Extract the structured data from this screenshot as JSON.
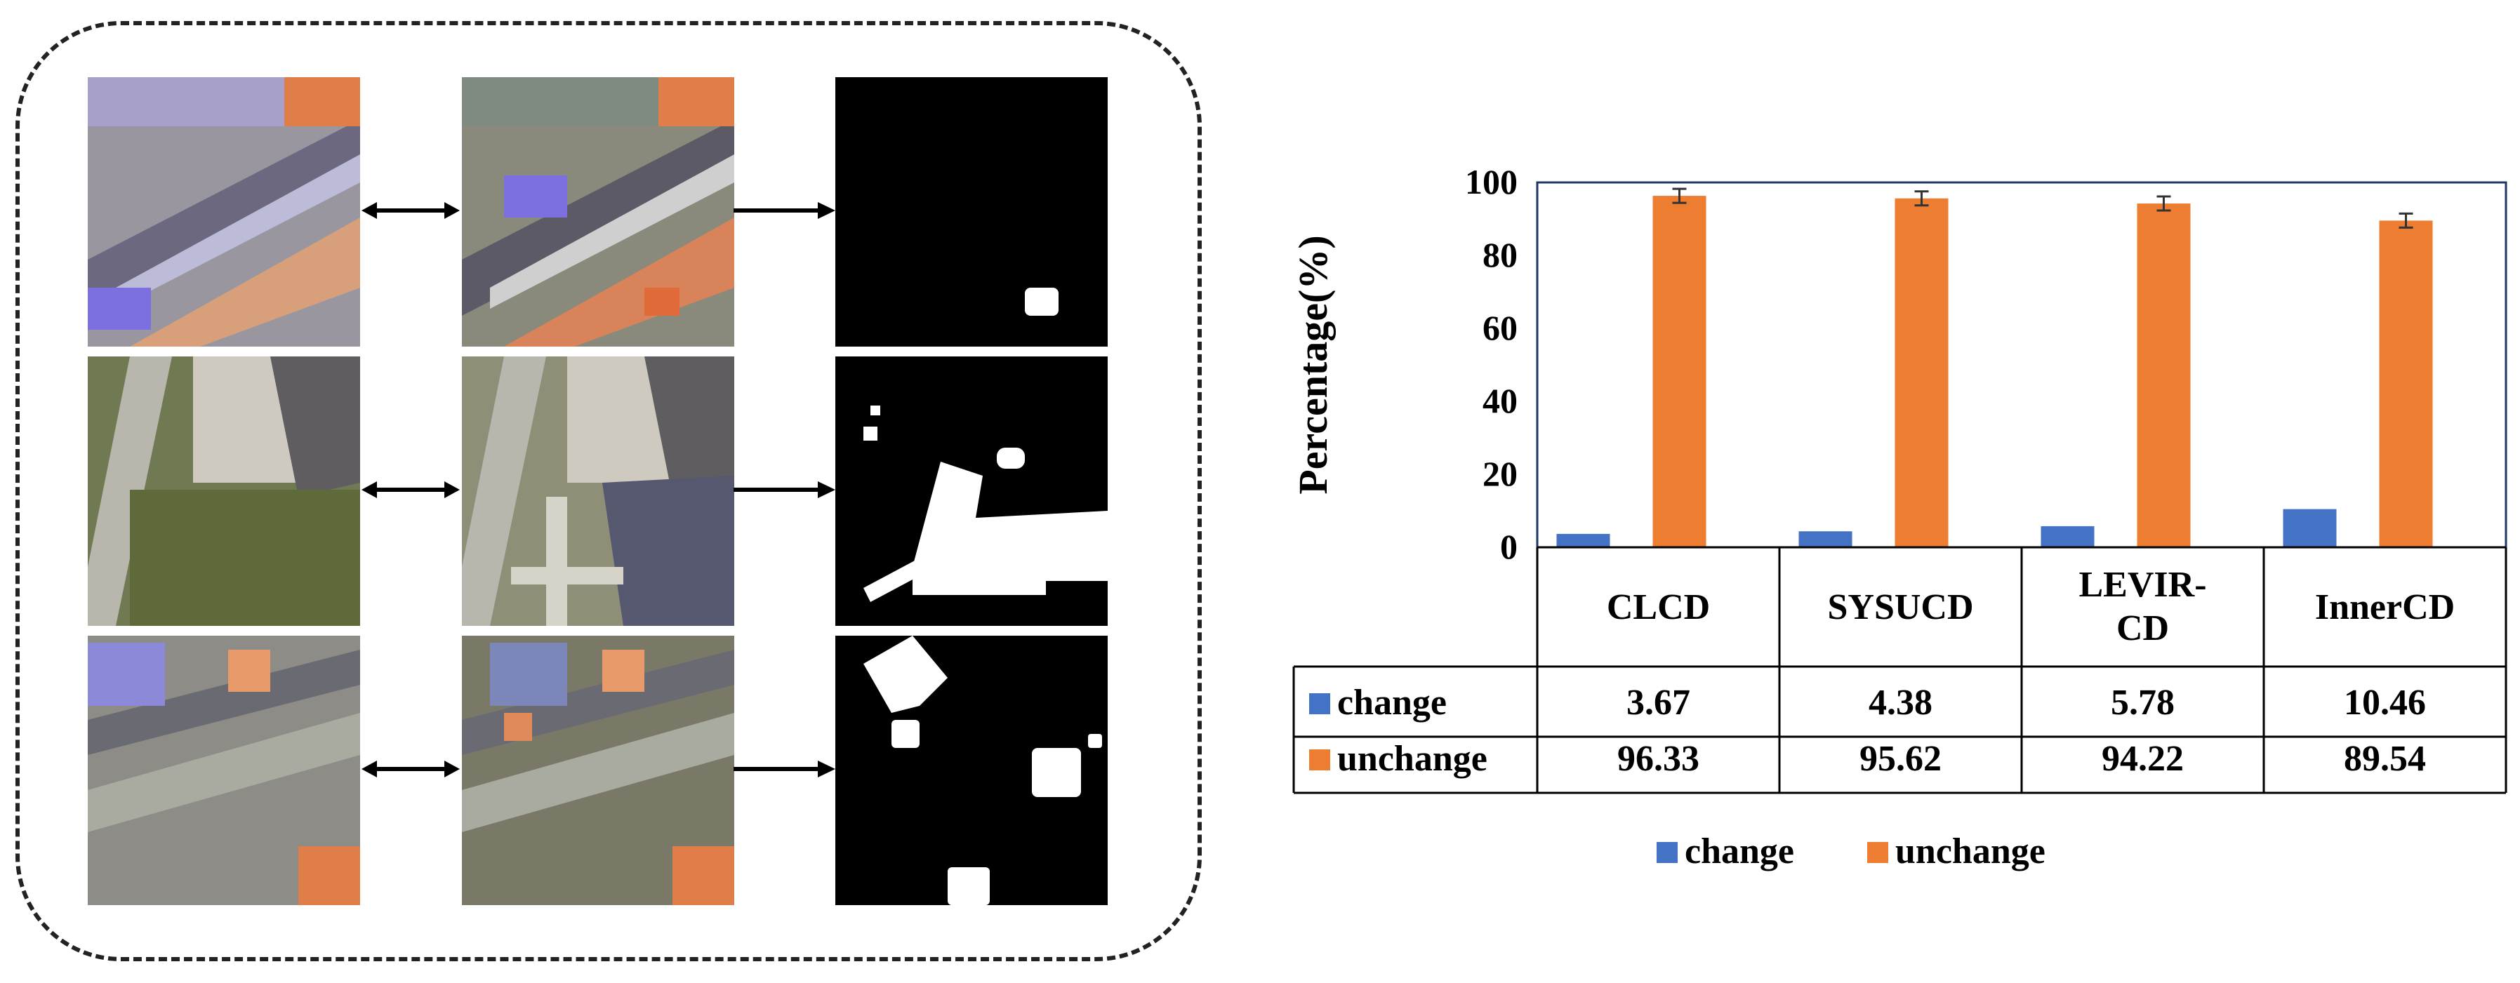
{
  "colors": {
    "change": "#4472C4",
    "unchange": "#ED7D31",
    "plot_border": "#1F3864",
    "mask_bg": "#000000",
    "mask_fg": "#ffffff"
  },
  "figure": {
    "rows": [
      {
        "t1": "aerial-image-t1",
        "t2": "aerial-image-t2",
        "mask": "change-mask",
        "scene": "industrial rooftops"
      },
      {
        "t1": "aerial-image-t1",
        "t2": "aerial-image-t2",
        "mask": "change-mask",
        "scene": "road and new houses"
      },
      {
        "t1": "aerial-image-t1",
        "t2": "aerial-image-t2",
        "mask": "change-mask",
        "scene": "dense buildings"
      }
    ],
    "icons": {
      "pair_arrow": "double-headed-arrow-icon",
      "result_arrow": "right-arrow-icon"
    }
  },
  "chart_data": {
    "type": "bar",
    "categories": [
      "CLCD",
      "SYSUCD",
      "LEVIR-CD",
      "InnerCD"
    ],
    "series": [
      {
        "name": "change",
        "values": [
          3.67,
          4.38,
          5.78,
          10.46
        ]
      },
      {
        "name": "unchange",
        "values": [
          96.33,
          95.62,
          94.22,
          89.54
        ]
      }
    ],
    "error_bars": {
      "series": "unchange",
      "present": true
    },
    "ylabel": "Percentage(%)",
    "xlabel": "",
    "ylim": [
      0,
      100
    ],
    "yticks": [
      0,
      20,
      40,
      60,
      80,
      100
    ],
    "grid": false,
    "legend": {
      "entries": [
        "change",
        "unchange"
      ],
      "placement": "bottom"
    },
    "data_table": {
      "rows": [
        {
          "label": "change",
          "values": [
            "3.67",
            "4.38",
            "5.78",
            "10.46"
          ]
        },
        {
          "label": "unchange",
          "values": [
            "96.33",
            "95.62",
            "94.22",
            "89.54"
          ]
        }
      ]
    }
  }
}
